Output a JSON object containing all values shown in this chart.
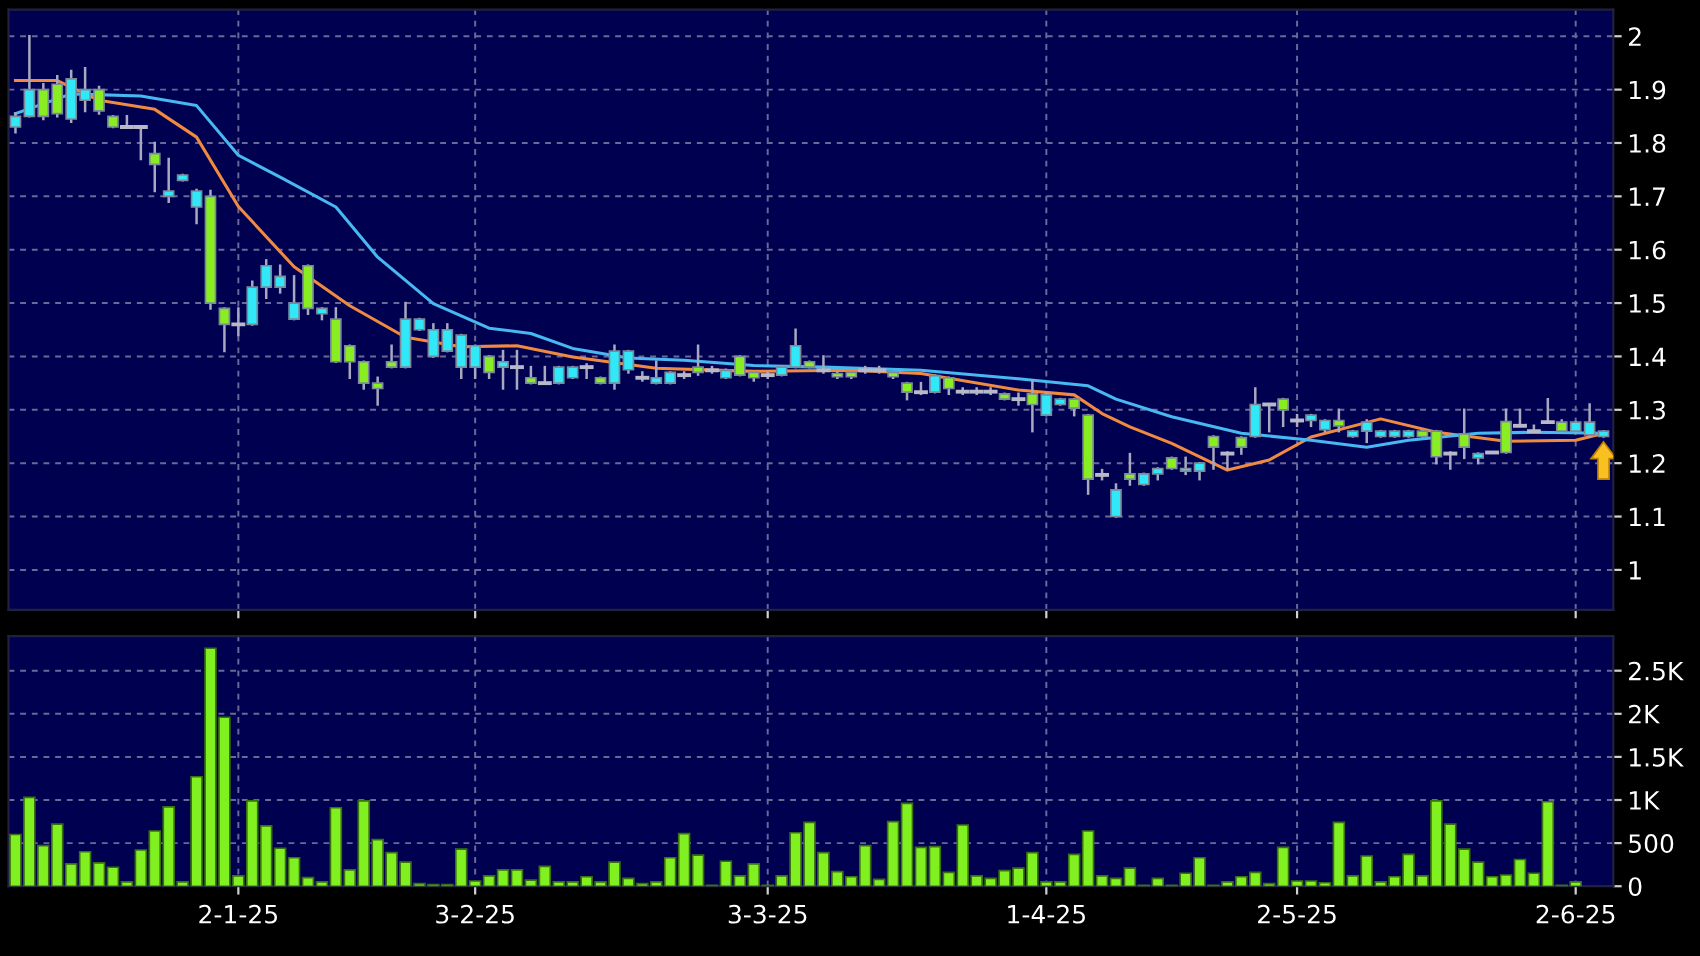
{
  "chart_data": [
    {
      "type": "candlestick",
      "tick_labels": "y",
      "grid": true,
      "categories": [
        null,
        null,
        null,
        null,
        null,
        null,
        null,
        null,
        null,
        null,
        null,
        null,
        null,
        null,
        null,
        null,
        null,
        null,
        null,
        null,
        null,
        null,
        null,
        null,
        null,
        null,
        null,
        null,
        null,
        null,
        null,
        null,
        null,
        null,
        null,
        null,
        null,
        null,
        null,
        null,
        null,
        null,
        null,
        null,
        null,
        null,
        null,
        null,
        null,
        null,
        null,
        null,
        null,
        null,
        null,
        null,
        null,
        null,
        null,
        null,
        null,
        null,
        null,
        null,
        null,
        null,
        null,
        null,
        null,
        null,
        null,
        null,
        null,
        null,
        null,
        null,
        null,
        null,
        null,
        null,
        null,
        null,
        null,
        null,
        null,
        null,
        null,
        null,
        null,
        null,
        null,
        null,
        null,
        null,
        null,
        null,
        null,
        null,
        null,
        null,
        null,
        null,
        null,
        null,
        null,
        null,
        null,
        null,
        null,
        null,
        null,
        null,
        null,
        null,
        null
      ],
      "ylim": [
        0.925,
        2.05
      ],
      "yticks": [
        1,
        1.1,
        1.2,
        1.3,
        1.4,
        1.5,
        1.6,
        1.7,
        1.8,
        1.9,
        2
      ],
      "series": [
        {
          "type": "line",
          "color": "#f08a40",
          "values": [
            1.917,
            null,
            null,
            1.917,
            null,
            null,
            1.88,
            null,
            null,
            null,
            1.863,
            null,
            null,
            1.811,
            null,
            null,
            1.681,
            null,
            null,
            null,
            1.568,
            null,
            null,
            null,
            1.495,
            null,
            null,
            null,
            1.436,
            null,
            null,
            null,
            1.418,
            null,
            null,
            null,
            1.42,
            null,
            null,
            null,
            1.399,
            null,
            null,
            null,
            null,
            null,
            1.378,
            null,
            null,
            null,
            null,
            null,
            null,
            1.372,
            null,
            null,
            null,
            null,
            null,
            null,
            1.374,
            null,
            null,
            null,
            null,
            1.368,
            null,
            null,
            null,
            null,
            null,
            null,
            1.337,
            null,
            null,
            null,
            1.328,
            null,
            1.293,
            null,
            1.268,
            null,
            null,
            1.237,
            null,
            null,
            null,
            1.187,
            null,
            null,
            1.206,
            null,
            null,
            1.249,
            null,
            null,
            null,
            null,
            1.283,
            null,
            null,
            null,
            1.258,
            null,
            null,
            null,
            null,
            1.241,
            null,
            null,
            null,
            null,
            1.243,
            null,
            1.256
          ]
        },
        {
          "type": "line",
          "color": "#48b8f0",
          "values": [
            1.855,
            null,
            null,
            null,
            1.892,
            null,
            null,
            null,
            null,
            1.888,
            null,
            null,
            null,
            1.87,
            null,
            null,
            1.777,
            null,
            null,
            1.736,
            null,
            null,
            null,
            1.68,
            null,
            null,
            1.586,
            null,
            null,
            null,
            1.499,
            null,
            null,
            null,
            1.453,
            null,
            null,
            1.443,
            null,
            null,
            1.415,
            null,
            null,
            null,
            1.397,
            null,
            null,
            null,
            1.393,
            null,
            null,
            null,
            null,
            1.383,
            null,
            null,
            null,
            null,
            1.38,
            null,
            null,
            null,
            null,
            null,
            null,
            1.374,
            null,
            null,
            null,
            null,
            null,
            null,
            1.358,
            null,
            null,
            null,
            null,
            1.345,
            null,
            1.32,
            null,
            null,
            null,
            1.287,
            null,
            null,
            null,
            null,
            1.256,
            null,
            null,
            null,
            null,
            1.243,
            null,
            null,
            null,
            1.23,
            null,
            null,
            1.243,
            null,
            null,
            null,
            null,
            1.256,
            null,
            null,
            null,
            1.258,
            null,
            null,
            null,
            null,
            1.256
          ]
        },
        {
          "type": "candlestick",
          "ohlc": [
            [
              1.83,
              1.855,
              1.82,
              1.85
            ],
            [
              1.85,
              2.0,
              1.85,
              1.9
            ],
            [
              1.9,
              1.91,
              1.845,
              1.85
            ],
            [
              1.91,
              1.925,
              1.85,
              1.855
            ],
            [
              1.845,
              1.935,
              1.84,
              1.92
            ],
            [
              1.88,
              1.94,
              1.86,
              1.9
            ],
            [
              1.9,
              1.905,
              1.855,
              1.86
            ],
            [
              1.85,
              1.85,
              1.83,
              1.83
            ],
            [
              1.83,
              1.85,
              1.83,
              1.83
            ],
            [
              1.83,
              1.83,
              1.77,
              1.83
            ],
            [
              1.78,
              1.8,
              1.71,
              1.76
            ],
            [
              1.7,
              1.77,
              1.69,
              1.71
            ],
            [
              1.73,
              1.74,
              1.73,
              1.74
            ],
            [
              1.68,
              1.712,
              1.65,
              1.71
            ],
            [
              1.7,
              1.71,
              1.49,
              1.5
            ],
            [
              1.49,
              1.49,
              1.41,
              1.46
            ],
            [
              1.46,
              1.49,
              1.44,
              1.46
            ],
            [
              1.46,
              1.54,
              1.46,
              1.53
            ],
            [
              1.53,
              1.58,
              1.51,
              1.57
            ],
            [
              1.53,
              1.57,
              1.52,
              1.55
            ],
            [
              1.47,
              1.55,
              1.47,
              1.5
            ],
            [
              1.57,
              1.57,
              1.48,
              1.49
            ],
            [
              1.48,
              1.49,
              1.47,
              1.49
            ],
            [
              1.47,
              1.49,
              1.39,
              1.39
            ],
            [
              1.42,
              1.42,
              1.36,
              1.39
            ],
            [
              1.39,
              1.39,
              1.34,
              1.35
            ],
            [
              1.35,
              1.36,
              1.31,
              1.34
            ],
            [
              1.39,
              1.42,
              1.38,
              1.38
            ],
            [
              1.38,
              1.5,
              1.38,
              1.47
            ],
            [
              1.45,
              1.47,
              1.45,
              1.47
            ],
            [
              1.4,
              1.46,
              1.4,
              1.45
            ],
            [
              1.41,
              1.46,
              1.41,
              1.45
            ],
            [
              1.38,
              1.44,
              1.36,
              1.44
            ],
            [
              1.38,
              1.42,
              1.36,
              1.42
            ],
            [
              1.4,
              1.4,
              1.36,
              1.37
            ],
            [
              1.38,
              1.41,
              1.34,
              1.39
            ],
            [
              1.38,
              1.41,
              1.34,
              1.38
            ],
            [
              1.36,
              1.38,
              1.35,
              1.35
            ],
            [
              1.35,
              1.38,
              1.35,
              1.35
            ],
            [
              1.35,
              1.38,
              1.35,
              1.38
            ],
            [
              1.36,
              1.38,
              1.36,
              1.38
            ],
            [
              1.38,
              1.385,
              1.36,
              1.38
            ],
            [
              1.36,
              1.36,
              1.35,
              1.35
            ],
            [
              1.35,
              1.42,
              1.34,
              1.41
            ],
            [
              1.375,
              1.41,
              1.37,
              1.41
            ],
            [
              1.36,
              1.37,
              1.355,
              1.36
            ],
            [
              1.35,
              1.39,
              1.35,
              1.36
            ],
            [
              1.35,
              1.37,
              1.35,
              1.37
            ],
            [
              1.365,
              1.37,
              1.36,
              1.365
            ],
            [
              1.38,
              1.42,
              1.366,
              1.37
            ],
            [
              1.374,
              1.38,
              1.37,
              1.374
            ],
            [
              1.36,
              1.375,
              1.36,
              1.374
            ],
            [
              1.4,
              1.4,
              1.365,
              1.365
            ],
            [
              1.37,
              1.37,
              1.355,
              1.36
            ],
            [
              1.365,
              1.37,
              1.36,
              1.365
            ],
            [
              1.365,
              1.38,
              1.365,
              1.38
            ],
            [
              1.38,
              1.45,
              1.38,
              1.42
            ],
            [
              1.39,
              1.39,
              1.38,
              1.38
            ],
            [
              1.374,
              1.4,
              1.37,
              1.374
            ],
            [
              1.368,
              1.37,
              1.36,
              1.362
            ],
            [
              1.37,
              1.37,
              1.36,
              1.362
            ],
            [
              1.374,
              1.38,
              1.37,
              1.374
            ],
            [
              1.374,
              1.38,
              1.37,
              1.374
            ],
            [
              1.37,
              1.37,
              1.36,
              1.362
            ],
            [
              1.35,
              1.35,
              1.32,
              1.333
            ],
            [
              1.333,
              1.35,
              1.33,
              1.333
            ],
            [
              1.333,
              1.364,
              1.333,
              1.364
            ],
            [
              1.36,
              1.36,
              1.33,
              1.34
            ],
            [
              1.334,
              1.34,
              1.33,
              1.334
            ],
            [
              1.334,
              1.34,
              1.33,
              1.334
            ],
            [
              1.334,
              1.34,
              1.33,
              1.334
            ],
            [
              1.33,
              1.33,
              1.32,
              1.32
            ],
            [
              1.32,
              1.33,
              1.31,
              1.32
            ],
            [
              1.33,
              1.355,
              1.26,
              1.31
            ],
            [
              1.29,
              1.33,
              1.29,
              1.328
            ],
            [
              1.31,
              1.32,
              1.31,
              1.32
            ],
            [
              1.32,
              1.32,
              1.29,
              1.303
            ],
            [
              1.29,
              1.29,
              1.143,
              1.17
            ],
            [
              1.178,
              1.187,
              1.17,
              1.178
            ],
            [
              1.1,
              1.16,
              1.1,
              1.15
            ],
            [
              1.18,
              1.217,
              1.16,
              1.17
            ],
            [
              1.16,
              1.18,
              1.16,
              1.18
            ],
            [
              1.18,
              1.19,
              1.17,
              1.19
            ],
            [
              1.21,
              1.21,
              1.19,
              1.19
            ],
            [
              1.185,
              1.21,
              1.18,
              1.19
            ],
            [
              1.185,
              1.2,
              1.17,
              1.2
            ],
            [
              1.25,
              1.25,
              1.19,
              1.23
            ],
            [
              1.218,
              1.22,
              1.19,
              1.218
            ],
            [
              1.248,
              1.248,
              1.218,
              1.23
            ],
            [
              1.25,
              1.34,
              1.25,
              1.31
            ],
            [
              1.31,
              1.31,
              1.26,
              1.31
            ],
            [
              1.32,
              1.32,
              1.27,
              1.3
            ],
            [
              1.28,
              1.29,
              1.27,
              1.28
            ],
            [
              1.28,
              1.29,
              1.27,
              1.29
            ],
            [
              1.263,
              1.28,
              1.26,
              1.28
            ],
            [
              1.28,
              1.3,
              1.26,
              1.27
            ],
            [
              1.25,
              1.26,
              1.25,
              1.26
            ],
            [
              1.26,
              1.28,
              1.24,
              1.277
            ],
            [
              1.25,
              1.26,
              1.25,
              1.26
            ],
            [
              1.25,
              1.26,
              1.25,
              1.26
            ],
            [
              1.25,
              1.26,
              1.25,
              1.26
            ],
            [
              1.26,
              1.26,
              1.25,
              1.25
            ],
            [
              1.26,
              1.26,
              1.2,
              1.212
            ],
            [
              1.218,
              1.22,
              1.19,
              1.218
            ],
            [
              1.255,
              1.3,
              1.21,
              1.23
            ],
            [
              1.21,
              1.218,
              1.2,
              1.218
            ],
            [
              1.22,
              1.22,
              1.22,
              1.22
            ],
            [
              1.278,
              1.3,
              1.22,
              1.22
            ],
            [
              1.27,
              1.3,
              1.27,
              1.27
            ],
            [
              1.26,
              1.27,
              1.26,
              1.26
            ],
            [
              1.277,
              1.32,
              1.277,
              1.277
            ],
            [
              1.277,
              1.28,
              1.26,
              1.26
            ],
            [
              1.26,
              1.277,
              1.26,
              1.277
            ],
            [
              1.253,
              1.31,
              1.25,
              1.277
            ],
            [
              1.25,
              1.26,
              1.25,
              1.26
            ]
          ],
          "colors": [
            "#30e8f8",
            "#30e8f8",
            "#88ee22",
            "#88ee22",
            "#30e8f8",
            "#30e8f8",
            "#88ee22",
            "#88ee22",
            "#b8b8c8",
            "#b8b8c8",
            "#88ee22",
            "#30e8f8",
            "#30e8f8",
            "#30e8f8",
            "#88ee22",
            "#88ee22",
            "#b8b8c8",
            "#30e8f8",
            "#30e8f8",
            "#30e8f8",
            "#30e8f8",
            "#88ee22",
            "#30e8f8",
            "#88ee22",
            "#88ee22",
            "#88ee22",
            "#88ee22",
            "#88ee22",
            "#30e8f8",
            "#30e8f8",
            "#30e8f8",
            "#30e8f8",
            "#30e8f8",
            "#30e8f8",
            "#88ee22",
            "#30e8f8",
            "#b8b8c8",
            "#88ee22",
            "#b8b8c8",
            "#30e8f8",
            "#30e8f8",
            "#b8b8c8",
            "#88ee22",
            "#30e8f8",
            "#30e8f8",
            "#b8b8c8",
            "#30e8f8",
            "#30e8f8",
            "#b8b8c8",
            "#88ee22",
            "#b8b8c8",
            "#30e8f8",
            "#88ee22",
            "#88ee22",
            "#b8b8c8",
            "#30e8f8",
            "#30e8f8",
            "#88ee22",
            "#b8b8c8",
            "#88ee22",
            "#88ee22",
            "#b8b8c8",
            "#b8b8c8",
            "#88ee22",
            "#88ee22",
            "#b8b8c8",
            "#30e8f8",
            "#88ee22",
            "#b8b8c8",
            "#b8b8c8",
            "#b8b8c8",
            "#88ee22",
            "#b8b8c8",
            "#88ee22",
            "#30e8f8",
            "#30e8f8",
            "#88ee22",
            "#88ee22",
            "#b8b8c8",
            "#30e8f8",
            "#88ee22",
            "#30e8f8",
            "#30e8f8",
            "#88ee22",
            "#30e8f8",
            "#30e8f8",
            "#88ee22",
            "#b8b8c8",
            "#88ee22",
            "#30e8f8",
            "#b8b8c8",
            "#88ee22",
            "#b8b8c8",
            "#30e8f8",
            "#30e8f8",
            "#88ee22",
            "#30e8f8",
            "#30e8f8",
            "#30e8f8",
            "#30e8f8",
            "#30e8f8",
            "#88ee22",
            "#88ee22",
            "#b8b8c8",
            "#88ee22",
            "#30e8f8",
            "#b8b8c8",
            "#88ee22",
            "#b8b8c8",
            "#b8b8c8",
            "#b8b8c8",
            "#88ee22",
            "#30e8f8",
            "#30e8f8",
            "#30e8f8"
          ]
        }
      ]
    },
    {
      "type": "bar",
      "grid": true,
      "color": "#80f020",
      "categories": [
        null,
        null,
        null,
        null,
        null,
        null,
        null,
        null,
        null,
        null,
        null,
        null,
        null,
        null,
        null,
        null,
        "2-1-25",
        null,
        null,
        null,
        null,
        null,
        null,
        null,
        null,
        null,
        null,
        null,
        null,
        null,
        null,
        null,
        null,
        "3-2-25",
        null,
        null,
        null,
        null,
        null,
        null,
        null,
        null,
        null,
        null,
        null,
        null,
        null,
        null,
        null,
        null,
        null,
        null,
        null,
        null,
        "3-3-25",
        null,
        null,
        null,
        null,
        null,
        null,
        null,
        null,
        null,
        null,
        null,
        null,
        null,
        null,
        null,
        null,
        null,
        null,
        null,
        "1-4-25",
        null,
        null,
        null,
        null,
        null,
        null,
        null,
        null,
        null,
        null,
        null,
        null,
        null,
        null,
        null,
        null,
        null,
        "2-5-25",
        null,
        null,
        null,
        null,
        null,
        null,
        null,
        null,
        null,
        null,
        null,
        null,
        null,
        null,
        null,
        null,
        null,
        null,
        null,
        "2-6-25",
        null,
        null
      ],
      "ylim": [
        0,
        2900
      ],
      "yticks": [
        0,
        500,
        {
          "value": 1000,
          "label": "1K"
        },
        {
          "value": 1500,
          "label": "1.5K"
        },
        {
          "value": 2000,
          "label": "2K"
        },
        {
          "value": 2500,
          "label": "2.5K"
        }
      ],
      "values": [
        600,
        1030,
        470,
        720,
        260,
        400,
        270,
        220,
        50,
        420,
        640,
        920,
        50,
        1270,
        2760,
        1960,
        120,
        990,
        700,
        440,
        330,
        100,
        50,
        910,
        190,
        990,
        540,
        390,
        280,
        30,
        20,
        20,
        430,
        60,
        120,
        190,
        190,
        70,
        230,
        50,
        50,
        110,
        50,
        280,
        90,
        30,
        50,
        330,
        610,
        360,
        10,
        290,
        120,
        260,
        10,
        120,
        620,
        740,
        390,
        170,
        110,
        470,
        80,
        750,
        960,
        450,
        460,
        160,
        710,
        120,
        90,
        180,
        210,
        390,
        50,
        50,
        370,
        640,
        120,
        90,
        210,
        10,
        90,
        10,
        150,
        330,
        10,
        50,
        110,
        160,
        30,
        450,
        60,
        60,
        40,
        740,
        120,
        350,
        50,
        110,
        370,
        120,
        990,
        720,
        430,
        280,
        110,
        130,
        310,
        150,
        980,
        10,
        50,
        null,
        null
      ]
    }
  ]
}
